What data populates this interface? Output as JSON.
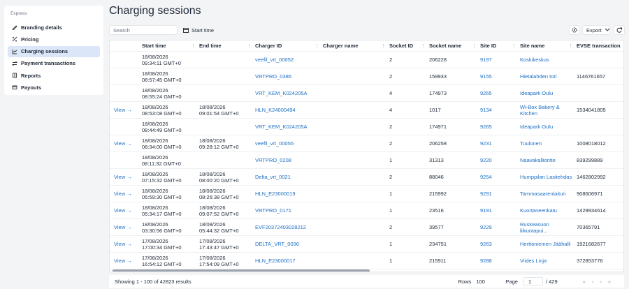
{
  "sidebar": {
    "section": "Express",
    "items": [
      "Branding details",
      "Pricing",
      "Charging sessions",
      "Payment transactions",
      "Reports",
      "Payouts"
    ],
    "active": 2
  },
  "header": {
    "title": "Charging sessions"
  },
  "toolbar": {
    "search_placeholder": "Search",
    "filter": "Start time",
    "export": "Export"
  },
  "table": {
    "columns": [
      "Start time",
      "End time",
      "Charger ID",
      "Charger name",
      "Socket ID",
      "Socket name",
      "Site ID",
      "Site name",
      "EVSE transaction"
    ],
    "rows": [
      [
        null,
        "18/08/2026\n09:34:11 GMT+0",
        null,
        "veefil_vrt_00052",
        null,
        2,
        206228,
        9197,
        "Koskikeskus",
        null
      ],
      [
        null,
        "18/08/2026\n08:57:45 GMT+0",
        null,
        "VRTPRO_0386",
        null,
        2,
        159933,
        9155,
        "Hietalahden tori",
        1146761657
      ],
      [
        null,
        "18/08/2026\n08:55:24 GMT+0",
        null,
        "VRT_KEM_K024205A",
        null,
        4,
        174973,
        9265,
        "Ideapark Oulu",
        null
      ],
      [
        "View →",
        "18/08/2026\n08:53:08 GMT+0",
        "18/08/2026\n09:01:54 GMT+0",
        "HLN_K24000494",
        null,
        4,
        1017,
        9134,
        "Wi-Box Bakery & Kitchen",
        1534041805
      ],
      [
        null,
        "18/08/2026\n08:44:49 GMT+0",
        null,
        "VRT_KEM_K024205A",
        null,
        2,
        174971,
        9265,
        "Ideapark Oulu",
        null
      ],
      [
        "View →",
        "18/08/2026\n08:34:00 GMT+0",
        "18/08/2026\n09:28:12 GMT+0",
        "veefil_vrt_00055",
        null,
        2,
        206258,
        9231,
        "Tuulonen",
        1008018012
      ],
      [
        null,
        "18/08/2026\n08:11:32 GMT+0",
        null,
        "VRTPRO_0208",
        null,
        1,
        31313,
        9220,
        "Naavakalliontie",
        839299889
      ],
      [
        "View →",
        "18/08/2026\n07:15:32 GMT+0",
        "18/08/2026\n08:00:20 GMT+0",
        "Delta_vrt_0021",
        null,
        2,
        88046,
        9254,
        "Humppilan Lasitehdas",
        1462802992
      ],
      [
        "View →",
        "18/08/2026\n05:59:30 GMT+0",
        "18/08/2026\n08:26:38 GMT+0",
        "HLN_E23000019",
        null,
        1,
        215992,
        9291,
        "Tammasaarenlaituri",
        908606971
      ],
      [
        "View →",
        "18/08/2026\n05:34:17 GMT+0",
        "18/08/2026\n09:07:52 GMT+0",
        "VRTPRO_0171",
        null,
        1,
        23516,
        9191,
        "Kuortaneenkatu",
        1429934614
      ],
      [
        "View →",
        "18/08/2026\n03:30:56 GMT+0",
        "18/08/2026\n05:44:32 GMT+0",
        "EVF20372403028212",
        null,
        2,
        39577,
        9229,
        "Ruskeasuon liikuntapui...",
        70365791
      ],
      [
        "View →",
        "17/08/2026\n17:00:34 GMT+0",
        "17/08/2026\n17:43:47 GMT+0",
        "DELTA_VRT_0036",
        null,
        1,
        234751,
        9263,
        "Herttoniemen Jäähalli",
        1921682677
      ],
      [
        "View →",
        "17/08/2026\n16:54:12 GMT+0",
        "17/08/2026\n17:54:09 GMT+0",
        "HLN_E23000017",
        null,
        1,
        215911,
        9288,
        "Viides Linja",
        372853776
      ]
    ]
  },
  "footer": {
    "summary": "Showing 1 - 100 of 42823 results",
    "rows_label": "Rows",
    "rows_value": 100,
    "page_label": "Page",
    "page_value": 1,
    "page_total": "/ 429"
  }
}
